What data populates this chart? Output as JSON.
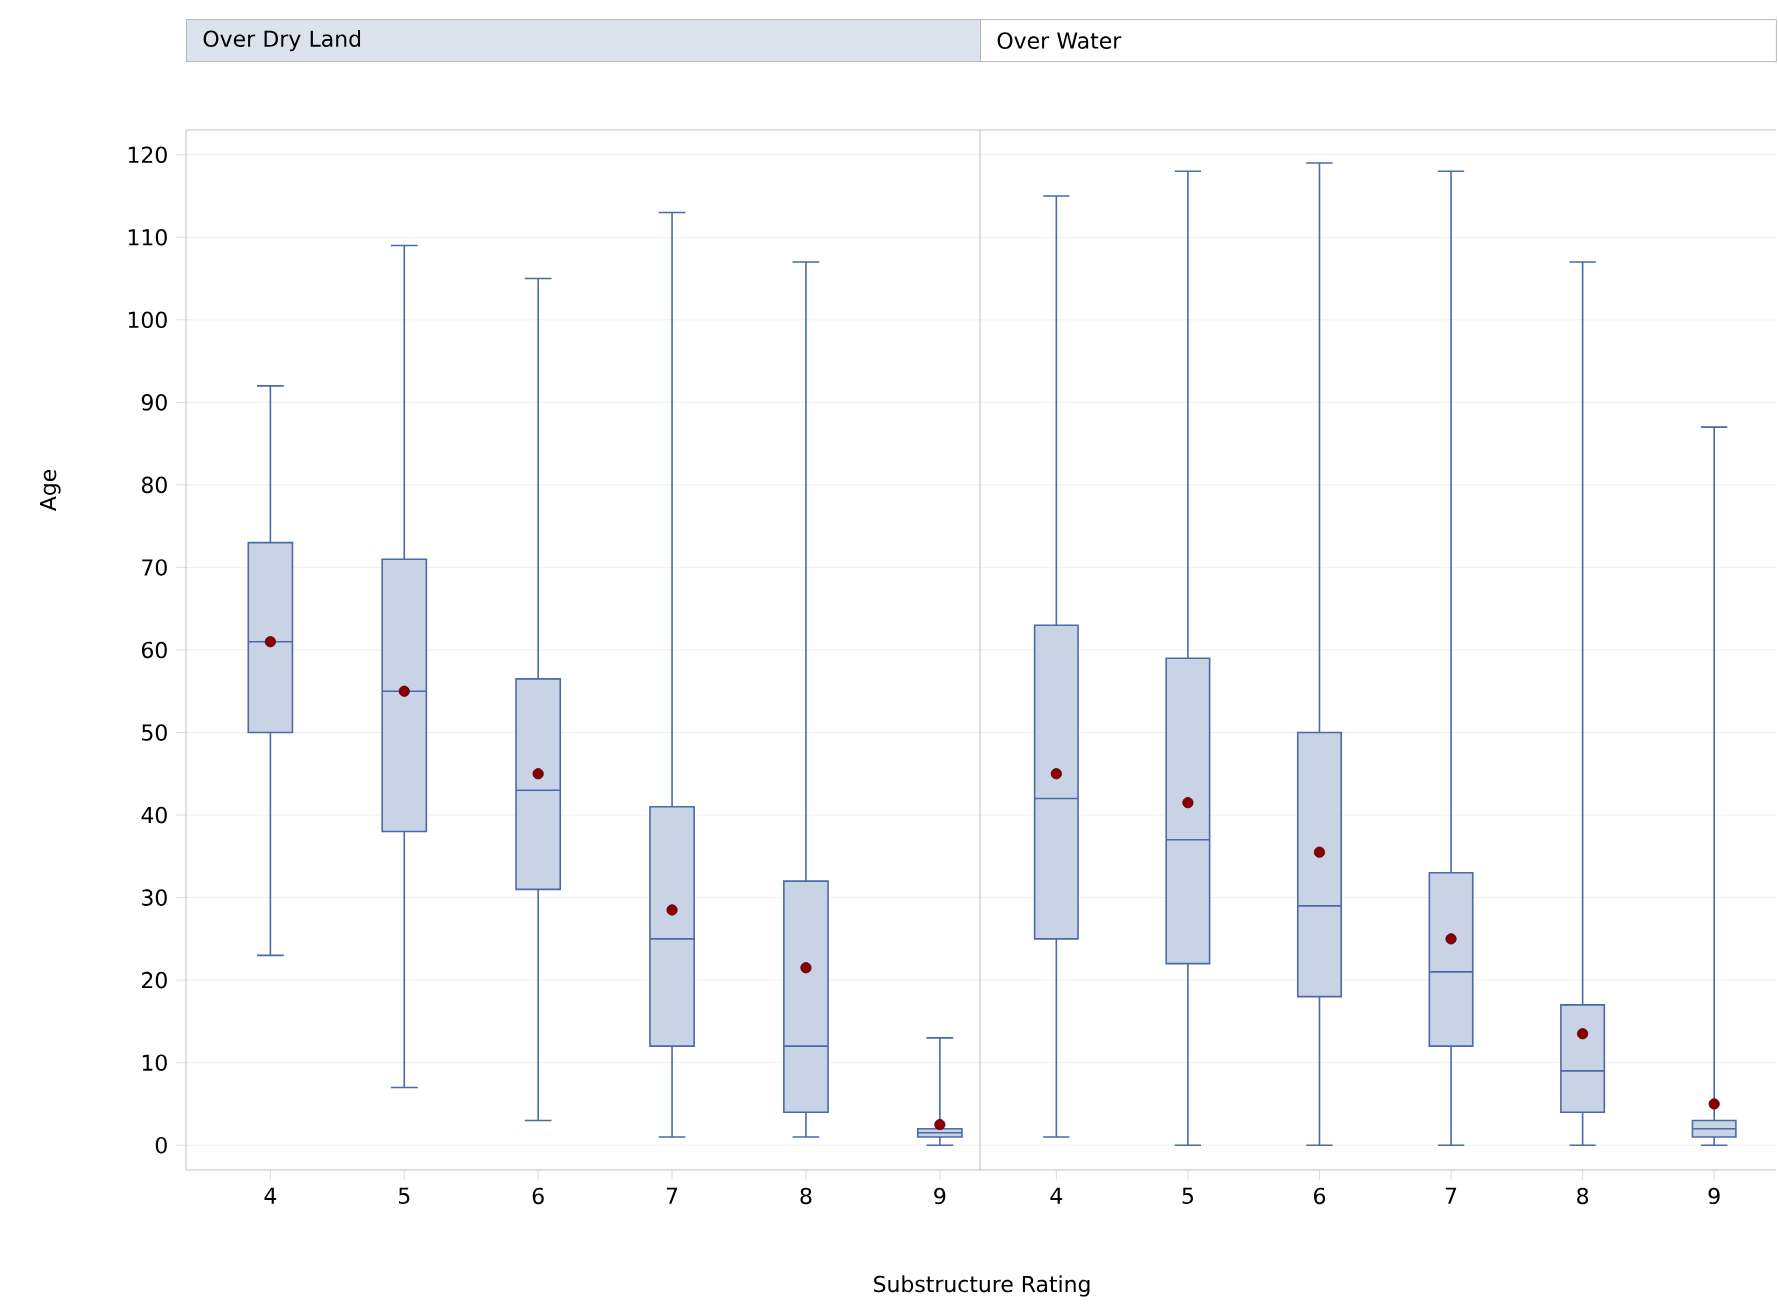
{
  "chart_data": [
    {
      "type": "box",
      "title": "Over Dry Land",
      "xlabel": "Substructure Rating",
      "ylabel": "Age",
      "categories": [
        "4",
        "5",
        "6",
        "7",
        "8",
        "9"
      ],
      "ylim": [
        -3,
        123
      ],
      "yticks": [
        0,
        10,
        20,
        30,
        40,
        50,
        60,
        70,
        80,
        90,
        100,
        110,
        120
      ],
      "grid": "y",
      "marker": "circle",
      "series": [
        {
          "color": "#4a6aa8",
          "boxes": [
            {
              "low": 23,
              "q1": 50,
              "median": 61,
              "q3": 73,
              "high": 92,
              "mean": 61
            },
            {
              "low": 7,
              "q1": 38,
              "median": 55,
              "q3": 71,
              "high": 109,
              "mean": 55
            },
            {
              "low": 3,
              "q1": 31,
              "median": 43,
              "q3": 56.5,
              "high": 105,
              "mean": 45
            },
            {
              "low": 1,
              "q1": 12,
              "median": 25,
              "q3": 41,
              "high": 113,
              "mean": 28.5
            },
            {
              "low": 1,
              "q1": 4,
              "median": 12,
              "q3": 32,
              "high": 107,
              "mean": 21.5
            },
            {
              "low": 0,
              "q1": 1,
              "median": 1.5,
              "q3": 2,
              "high": 13,
              "mean": 2.5
            }
          ]
        }
      ]
    },
    {
      "type": "box",
      "title": "Over Water",
      "categories": [
        "4",
        "5",
        "6",
        "7",
        "8",
        "9"
      ],
      "ylim": [
        -3,
        123
      ],
      "yticks": [
        0,
        10,
        20,
        30,
        40,
        50,
        60,
        70,
        80,
        90,
        100,
        110,
        120
      ],
      "tick_labels": "x",
      "grid": "y",
      "marker": "circle",
      "series": [
        {
          "color": "#4a6aa8",
          "boxes": [
            {
              "low": 1,
              "q1": 25,
              "median": 42,
              "q3": 63,
              "high": 115,
              "mean": 45
            },
            {
              "low": 0,
              "q1": 22,
              "median": 37,
              "q3": 59,
              "high": 118,
              "mean": 41.5
            },
            {
              "low": 0,
              "q1": 18,
              "median": 29,
              "q3": 50,
              "high": 119,
              "mean": 35.5
            },
            {
              "low": 0,
              "q1": 12,
              "median": 21,
              "q3": 33,
              "high": 118,
              "mean": 25
            },
            {
              "low": 0,
              "q1": 4,
              "median": 9,
              "q3": 17,
              "high": 107,
              "mean": 13.5
            },
            {
              "low": 0,
              "q1": 1,
              "median": 2,
              "q3": 3,
              "high": 87,
              "mean": 5
            }
          ]
        }
      ]
    }
  ]
}
